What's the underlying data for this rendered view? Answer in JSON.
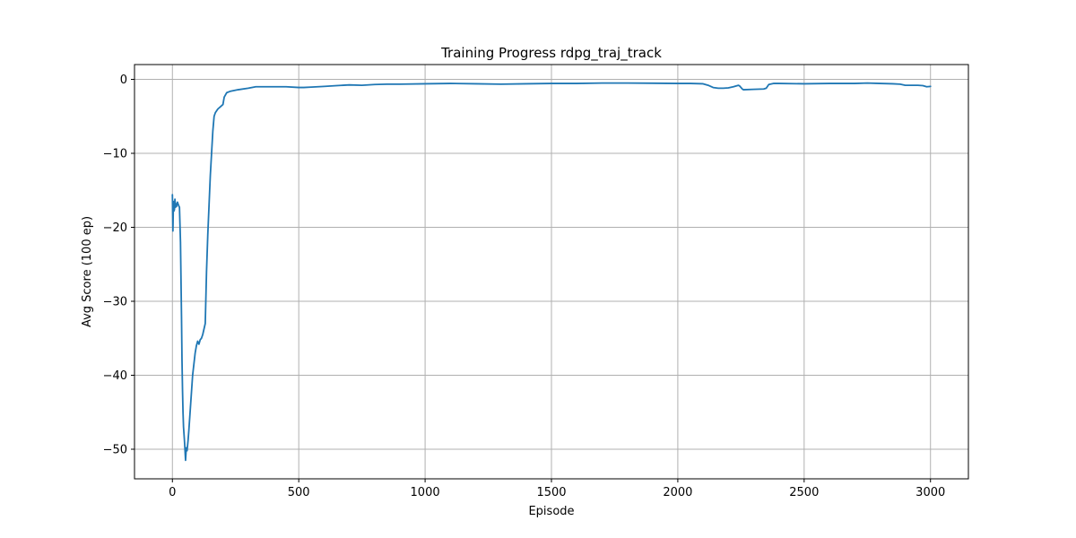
{
  "chart_data": {
    "type": "line",
    "title": "Training Progress rdpg_traj_track",
    "xlabel": "Episode",
    "ylabel": "Avg Score (100 ep)",
    "xlim": [
      -150,
      3150
    ],
    "ylim": [
      -54,
      2
    ],
    "x_ticks": [
      0,
      500,
      1000,
      1500,
      2000,
      2500,
      3000
    ],
    "y_ticks": [
      0,
      -10,
      -20,
      -30,
      -40,
      -50
    ],
    "x_tick_labels": [
      "0",
      "500",
      "1000",
      "1500",
      "2000",
      "2500",
      "3000"
    ],
    "y_tick_labels": [
      "0",
      "−10",
      "−20",
      "−30",
      "−40",
      "−50"
    ],
    "grid": true,
    "series": [
      {
        "color": "#1f77b4",
        "x": [
          0,
          2,
          4,
          6,
          8,
          10,
          12,
          14,
          16,
          20,
          24,
          28,
          32,
          36,
          38,
          40,
          42,
          44,
          46,
          48,
          50,
          52,
          55,
          58,
          60,
          62,
          65,
          70,
          80,
          90,
          95,
          100,
          105,
          110,
          115,
          120,
          130,
          135,
          140,
          145,
          150,
          155,
          160,
          165,
          170,
          180,
          190,
          200,
          205,
          215,
          230,
          260,
          300,
          330,
          350,
          400,
          450,
          500,
          520,
          550,
          600,
          650,
          700,
          750,
          800,
          850,
          900,
          1000,
          1100,
          1200,
          1300,
          1400,
          1500,
          1600,
          1700,
          1800,
          1900,
          2000,
          2050,
          2100,
          2120,
          2140,
          2160,
          2180,
          2200,
          2220,
          2240,
          2245,
          2255,
          2260,
          2300,
          2340,
          2350,
          2360,
          2380,
          2400,
          2500,
          2600,
          2700,
          2750,
          2800,
          2850,
          2880,
          2900,
          2950,
          2970,
          2985,
          3000
        ],
        "y": [
          -15.6,
          -20.5,
          -16.5,
          -17.8,
          -17.6,
          -16.2,
          -17.3,
          -16.8,
          -17.2,
          -16.6,
          -17.0,
          -17.3,
          -22,
          -32,
          -38,
          -42,
          -45,
          -47,
          -48,
          -49,
          -50.2,
          -51.5,
          -49.8,
          -50.2,
          -49.5,
          -48.8,
          -47.5,
          -45,
          -40,
          -37,
          -36,
          -35.4,
          -35.8,
          -35.2,
          -35.0,
          -34.5,
          -33,
          -26,
          -21,
          -17,
          -13,
          -10,
          -7,
          -5,
          -4.5,
          -4,
          -3.7,
          -3.4,
          -2.4,
          -1.8,
          -1.6,
          -1.4,
          -1.2,
          -1.0,
          -1.0,
          -1.0,
          -1.0,
          -1.1,
          -1.1,
          -1.05,
          -0.95,
          -0.85,
          -0.75,
          -0.8,
          -0.7,
          -0.65,
          -0.65,
          -0.6,
          -0.55,
          -0.6,
          -0.65,
          -0.6,
          -0.55,
          -0.55,
          -0.5,
          -0.5,
          -0.52,
          -0.55,
          -0.55,
          -0.6,
          -0.8,
          -1.1,
          -1.2,
          -1.2,
          -1.15,
          -1.0,
          -0.8,
          -0.9,
          -1.3,
          -1.4,
          -1.35,
          -1.3,
          -1.2,
          -0.7,
          -0.55,
          -0.55,
          -0.6,
          -0.55,
          -0.55,
          -0.5,
          -0.55,
          -0.6,
          -0.65,
          -0.8,
          -0.8,
          -0.85,
          -1.0,
          -0.95
        ]
      }
    ]
  }
}
